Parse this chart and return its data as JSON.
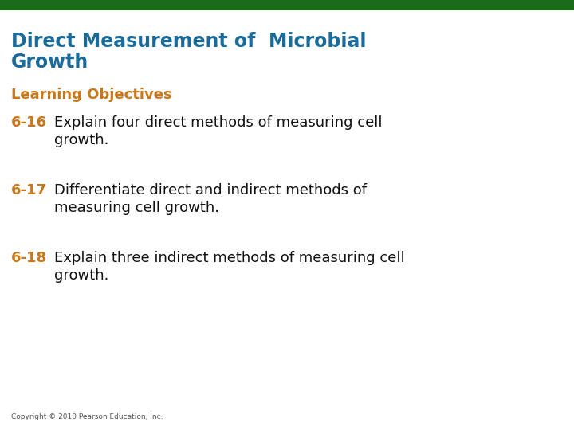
{
  "title_line1": "Direct Measurement of  Microbial",
  "title_line2": "Growth",
  "title_color": "#1a6b9a",
  "learning_objectives_label": "Learning Objectives",
  "learning_objectives_color": "#c8781a",
  "top_bar_color": "#1a6b1a",
  "background_color": "#ffffff",
  "items": [
    {
      "number": "6-16",
      "text_line1": "Explain four direct methods of measuring cell",
      "text_line2": "growth."
    },
    {
      "number": "6-17",
      "text_line1": "Differentiate direct and indirect methods of",
      "text_line2": "measuring cell growth."
    },
    {
      "number": "6-18",
      "text_line1": "Explain three indirect methods of measuring cell",
      "text_line2": "growth."
    }
  ],
  "number_color": "#c8781a",
  "text_color": "#111111",
  "copyright_text": "Copyright © 2010 Pearson Education, Inc.",
  "copyright_color": "#555555",
  "title_fontsize": 17,
  "lo_fontsize": 13,
  "item_fontsize": 13,
  "copyright_fontsize": 6.5
}
